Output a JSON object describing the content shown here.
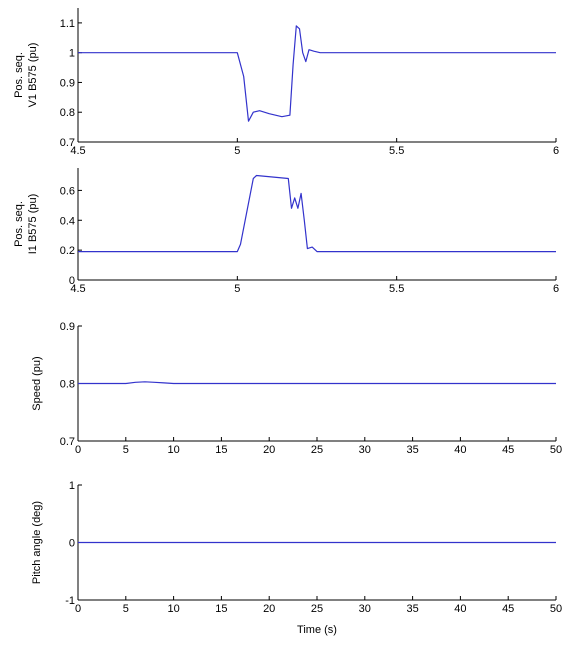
{
  "chart_data": [
    {
      "type": "line",
      "ylabel_lines": [
        "Pos. seq.",
        "V1 B575 (pu)"
      ],
      "xlabel": "",
      "xlim": [
        4.5,
        6
      ],
      "ylim": [
        0.7,
        1.15
      ],
      "xticks": [
        4.5,
        5,
        5.5,
        6
      ],
      "xtick_labels": [
        "4.5",
        "5",
        "5.5",
        "6"
      ],
      "yticks": [
        0.7,
        0.8,
        0.9,
        1,
        1.1
      ],
      "ytick_labels": [
        "0.7",
        "0.8",
        "0.9",
        "1",
        "1.1"
      ],
      "grid": false,
      "color": "#3333cc",
      "series": [
        {
          "x": [
            4.5,
            5.0,
            5.02,
            5.035,
            5.05,
            5.07,
            5.1,
            5.14,
            5.165,
            5.175,
            5.185,
            5.195,
            5.205,
            5.215,
            5.225,
            5.24,
            5.26,
            6.0
          ],
          "y": [
            1.0,
            1.0,
            0.92,
            0.77,
            0.8,
            0.805,
            0.795,
            0.785,
            0.79,
            0.96,
            1.09,
            1.08,
            1.0,
            0.97,
            1.01,
            1.005,
            1.0,
            1.0
          ]
        }
      ]
    },
    {
      "type": "line",
      "ylabel_lines": [
        "Pos. seq.",
        "I1 B575 (pu)"
      ],
      "xlabel": "",
      "xlim": [
        4.5,
        6
      ],
      "ylim": [
        0,
        0.75
      ],
      "xticks": [
        4.5,
        5,
        5.5,
        6
      ],
      "xtick_labels": [
        "4.5",
        "5",
        "5.5",
        "6"
      ],
      "yticks": [
        0,
        0.2,
        0.4,
        0.6
      ],
      "ytick_labels": [
        "0",
        "0.2",
        "0.4",
        "0.6"
      ],
      "grid": false,
      "color": "#3333cc",
      "series": [
        {
          "x": [
            4.5,
            5.0,
            5.01,
            5.05,
            5.06,
            5.16,
            5.17,
            5.18,
            5.19,
            5.2,
            5.21,
            5.22,
            5.235,
            5.25,
            6.0
          ],
          "y": [
            0.19,
            0.19,
            0.24,
            0.68,
            0.7,
            0.68,
            0.48,
            0.55,
            0.48,
            0.58,
            0.4,
            0.21,
            0.22,
            0.19,
            0.19
          ]
        }
      ]
    },
    {
      "type": "line",
      "ylabel_lines": [
        "Speed (pu)"
      ],
      "xlabel": "",
      "xlim": [
        0,
        50
      ],
      "ylim": [
        0.7,
        0.9
      ],
      "xticks": [
        0,
        5,
        10,
        15,
        20,
        25,
        30,
        35,
        40,
        45,
        50
      ],
      "xtick_labels": [
        "0",
        "5",
        "10",
        "15",
        "20",
        "25",
        "30",
        "35",
        "40",
        "45",
        "50"
      ],
      "yticks": [
        0.7,
        0.8,
        0.9
      ],
      "ytick_labels": [
        "0.7",
        "0.8",
        "0.9"
      ],
      "grid": false,
      "color": "#3333cc",
      "series": [
        {
          "x": [
            0,
            5,
            6,
            7,
            8,
            9,
            10,
            50
          ],
          "y": [
            0.8,
            0.8,
            0.802,
            0.803,
            0.802,
            0.801,
            0.8,
            0.8
          ]
        }
      ]
    },
    {
      "type": "line",
      "ylabel_lines": [
        "Pitch angle (deg)"
      ],
      "xlabel": "Time (s)",
      "xlim": [
        0,
        50
      ],
      "ylim": [
        -1,
        1
      ],
      "xticks": [
        0,
        5,
        10,
        15,
        20,
        25,
        30,
        35,
        40,
        45,
        50
      ],
      "xtick_labels": [
        "0",
        "5",
        "10",
        "15",
        "20",
        "25",
        "30",
        "35",
        "40",
        "45",
        "50"
      ],
      "yticks": [
        -1,
        0,
        1
      ],
      "ytick_labels": [
        "-1",
        "0",
        "1"
      ],
      "grid": false,
      "color": "#3333cc",
      "series": [
        {
          "x": [
            0,
            50
          ],
          "y": [
            0,
            0
          ]
        }
      ]
    }
  ]
}
